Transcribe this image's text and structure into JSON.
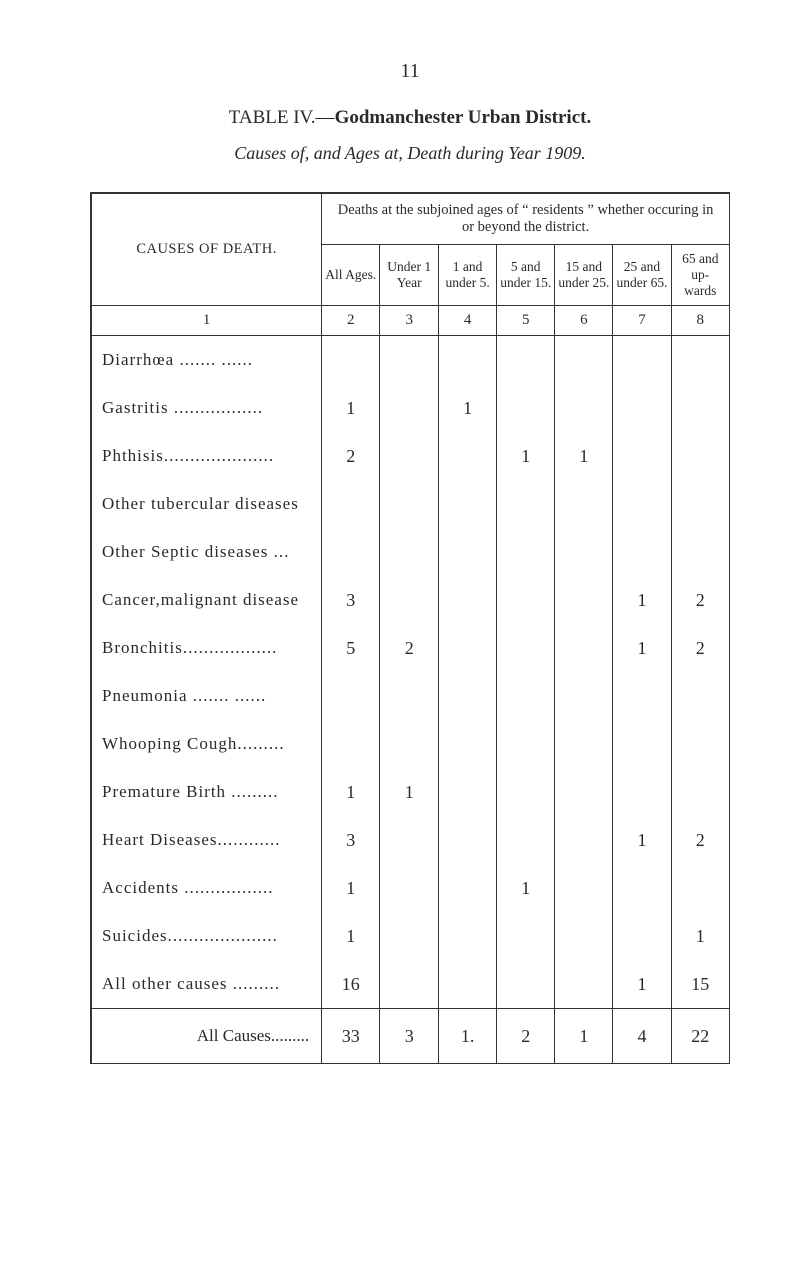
{
  "page_number": "11",
  "title_prefix": "TABLE IV.—",
  "title_bold": "Godmanchester Urban District.",
  "subtitle": "Causes of, and Ages at, Death during Year 1909.",
  "banner": "Deaths at the subjoined ages of “ residents ” whether occuring in or beyond the district.",
  "stub_heading": "CAUSES OF DEATH.",
  "age_headers": [
    "All Ages.",
    "Under 1 Year",
    "1 and under 5.",
    "5 and under 15.",
    "15 and under 25.",
    "25 and under 65.",
    "65 and up- wards"
  ],
  "col_numbers": [
    "1",
    "2",
    "3",
    "4",
    "5",
    "6",
    "7",
    "8"
  ],
  "rows": [
    {
      "label": "Diarrhœa ....... ......",
      "cells": [
        "",
        "",
        "",
        "",
        "",
        "",
        ""
      ]
    },
    {
      "label": "Gastritis  .................",
      "cells": [
        "1",
        "",
        "1",
        "",
        "",
        "",
        ""
      ]
    },
    {
      "label": "Phthisis.....................",
      "cells": [
        "2",
        "",
        "",
        "1",
        "1",
        "",
        ""
      ]
    },
    {
      "label": "Other tubercular diseases",
      "cells": [
        "",
        "",
        "",
        "",
        "",
        "",
        ""
      ]
    },
    {
      "label": "Other Septic diseases ...",
      "cells": [
        "",
        "",
        "",
        "",
        "",
        "",
        ""
      ]
    },
    {
      "label": "Cancer,malignant disease",
      "cells": [
        "3",
        "",
        "",
        "",
        "",
        "1",
        "2"
      ]
    },
    {
      "label": "Bronchitis..................",
      "cells": [
        "5",
        "2",
        "",
        "",
        "",
        "1",
        "2"
      ]
    },
    {
      "label": "Pneumonia  ....... ......",
      "cells": [
        "",
        "",
        "",
        "",
        "",
        "",
        ""
      ]
    },
    {
      "label": "Whooping Cough.........",
      "cells": [
        "",
        "",
        "",
        "",
        "",
        "",
        ""
      ]
    },
    {
      "label": "Premature Birth  .........",
      "cells": [
        "1",
        "1",
        "",
        "",
        "",
        "",
        ""
      ]
    },
    {
      "label": "Heart Diseases............",
      "cells": [
        "3",
        "",
        "",
        "",
        "",
        "1",
        "2"
      ]
    },
    {
      "label": "Accidents  .................",
      "cells": [
        "1",
        "",
        "",
        "1",
        "",
        "",
        ""
      ]
    },
    {
      "label": "Suicides.....................",
      "cells": [
        "1",
        "",
        "",
        "",
        "",
        "",
        "1"
      ]
    },
    {
      "label": "All other causes  .........",
      "cells": [
        "16",
        "",
        "",
        "",
        "",
        "1",
        "15"
      ]
    }
  ],
  "total": {
    "label": "All Causes.........",
    "cells": [
      "33",
      "3",
      "1.",
      "2",
      "1",
      "4",
      "22"
    ]
  },
  "colors": {
    "text": "#2a2a2a",
    "border": "#333333",
    "background": "#ffffff"
  },
  "fonts": {
    "body_pt": 16,
    "small_pt": 13.5,
    "title_pt": 19
  }
}
